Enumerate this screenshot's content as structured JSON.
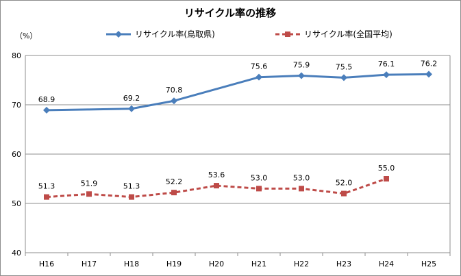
{
  "chart_data": {
    "type": "line",
    "title": "リサイクル率の推移",
    "y_unit": "（%）",
    "ylim": [
      40,
      80
    ],
    "y_ticks": [
      40,
      50,
      60,
      70,
      80
    ],
    "grid": true,
    "legend_position": "top-right",
    "categories": [
      "H16",
      "H17",
      "H18",
      "H19",
      "H20",
      "H21",
      "H22",
      "H23",
      "H24",
      "H25"
    ],
    "series": [
      {
        "name": "リサイクル率(鳥取県)",
        "color": "#4a7ebb",
        "marker": "diamond",
        "line_style": "solid",
        "values": [
          68.9,
          null,
          69.2,
          70.8,
          null,
          75.6,
          75.9,
          75.5,
          76.1,
          76.2
        ],
        "labels": [
          "68.9",
          null,
          "69.2",
          "70.8",
          null,
          "75.6",
          "75.9",
          "75.5",
          "76.1",
          "76.2"
        ],
        "interpolated": {
          "H17": 69.05,
          "H20": 73.2
        }
      },
      {
        "name": "リサイクル率(全国平均)",
        "color": "#be4b48",
        "marker": "square",
        "line_style": "dashed",
        "values": [
          51.3,
          51.9,
          51.3,
          52.2,
          53.6,
          53.0,
          53.0,
          52.0,
          55.0,
          null
        ],
        "labels": [
          "51.3",
          "51.9",
          "51.3",
          "52.2",
          "53.6",
          "53.0",
          "53.0",
          "52.0",
          "55.0",
          null
        ]
      }
    ]
  }
}
